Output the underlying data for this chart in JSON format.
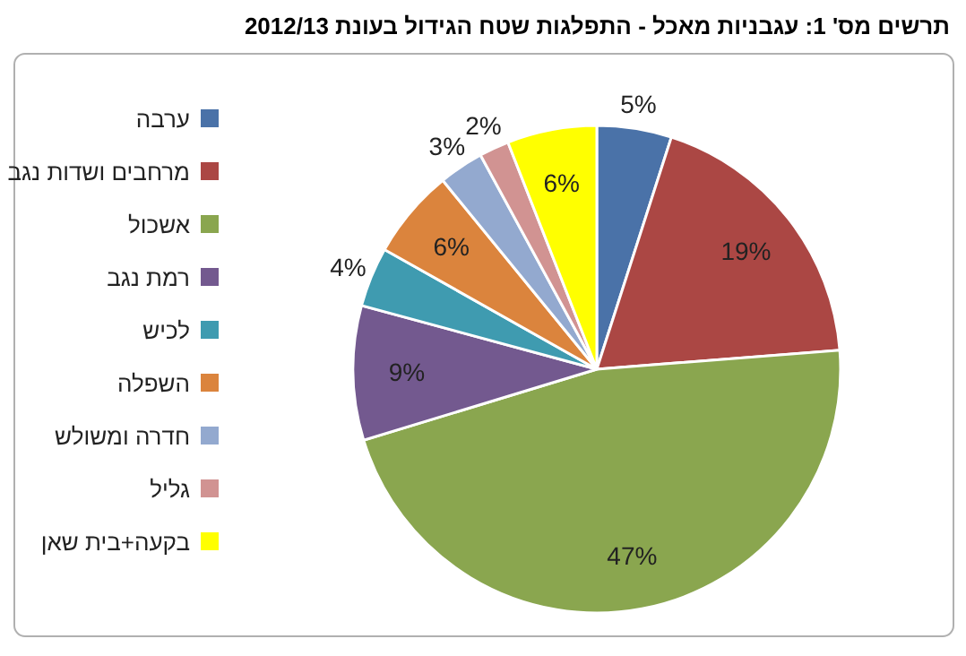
{
  "chart_data": {
    "type": "pie",
    "title": "תרשים מס' 1: עגבניות מאכל - התפלגות שטח הגידול בעונת 2012/13",
    "categories": [
      "ערבה",
      "מרחבים ושדות נגב",
      "אשכול",
      "רמת נגב",
      "לכיש",
      "השפלה",
      "חדרה ומשולש",
      "גליל",
      "בקעה+בית שאן"
    ],
    "values": [
      5,
      19,
      47,
      9,
      4,
      6,
      3,
      2,
      6
    ],
    "value_labels": [
      "5%",
      "19%",
      "47%",
      "9%",
      "4%",
      "6%",
      "3%",
      "2%",
      "6%"
    ],
    "colors": [
      "#4a72a8",
      "#ab4744",
      "#8aa64f",
      "#73598f",
      "#3f9bb0",
      "#db843d",
      "#93a9cf",
      "#d19392",
      "#ffff00"
    ],
    "legend": "left"
  }
}
